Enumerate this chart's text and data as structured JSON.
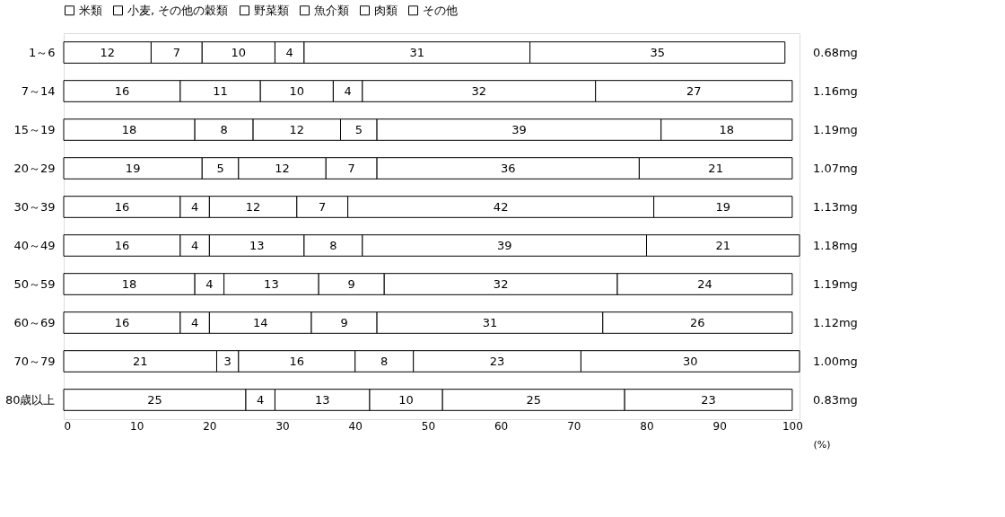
{
  "chart_data": {
    "type": "bar",
    "orientation": "horizontal",
    "stacked": true,
    "data_labels": true,
    "legend": "top",
    "grid": false,
    "xlabel": "(%)",
    "xlim": [
      0,
      101
    ],
    "xticks": [
      0,
      10,
      20,
      30,
      40,
      50,
      60,
      70,
      80,
      90,
      100
    ],
    "categories": [
      "1～6",
      "7～14",
      "15～19",
      "20～29",
      "30～39",
      "40～49",
      "50～59",
      "60～69",
      "70～79",
      "80歳以上"
    ],
    "series": [
      {
        "name": "米類",
        "color": "#ffffff",
        "values": [
          12,
          16,
          18,
          19,
          16,
          16,
          18,
          16,
          21,
          25
        ]
      },
      {
        "name": "小麦, その他の穀類",
        "color": "#ffffff",
        "values": [
          7,
          11,
          8,
          5,
          4,
          4,
          4,
          4,
          3,
          4
        ]
      },
      {
        "name": "野菜類",
        "color": "#ffffff",
        "values": [
          10,
          10,
          12,
          12,
          12,
          13,
          13,
          14,
          16,
          13
        ]
      },
      {
        "name": "魚介類",
        "color": "#ffffff",
        "values": [
          4,
          4,
          5,
          7,
          7,
          8,
          9,
          9,
          8,
          10
        ]
      },
      {
        "name": "肉類",
        "color": "#ffffff",
        "values": [
          31,
          32,
          39,
          36,
          42,
          39,
          32,
          31,
          23,
          25
        ]
      },
      {
        "name": "その他",
        "color": "#ffffff",
        "values": [
          35,
          27,
          18,
          21,
          19,
          21,
          24,
          26,
          30,
          23
        ]
      }
    ],
    "annotations": [
      "0.68mg",
      "1.16mg",
      "1.19mg",
      "1.07mg",
      "1.13mg",
      "1.18mg",
      "1.19mg",
      "1.12mg",
      "1.00mg",
      "0.83mg"
    ]
  }
}
